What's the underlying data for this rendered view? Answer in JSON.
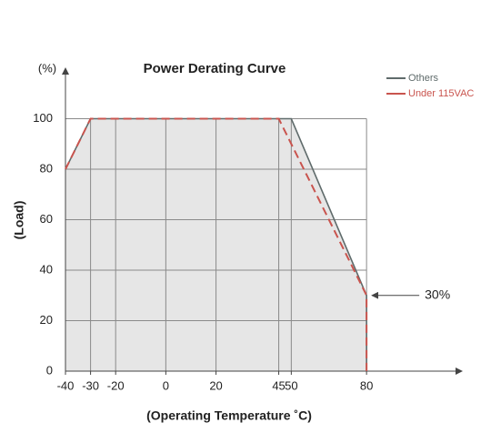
{
  "chart_data": {
    "type": "line",
    "title": "Power Derating Curve",
    "y_unit": "(%)",
    "ylabel": "(Load)",
    "xlabel": "(Operating Temperature ˚C)",
    "series": [
      {
        "name": "Others",
        "color": "#5f6b6b",
        "style": "solid",
        "fill": "#e6e6e6",
        "x": [
          -40,
          -30,
          50,
          80,
          80
        ],
        "values": [
          80,
          100,
          100,
          30,
          0
        ]
      },
      {
        "name": "Under 115VAC",
        "color": "#c9544e",
        "style": "dashed",
        "x": [
          -40,
          -30,
          45,
          80,
          80
        ],
        "values": [
          80,
          100,
          100,
          30,
          0
        ]
      }
    ],
    "xlim": [
      -40,
      118
    ],
    "ylim": [
      0,
      120
    ],
    "xticks": [
      -40,
      -30,
      -20,
      0,
      20,
      45,
      50,
      80
    ],
    "yticks": [
      0,
      20,
      40,
      60,
      80,
      100
    ],
    "grid": true,
    "legend": "top-right",
    "annotations": [
      {
        "text": "30%",
        "x": 80,
        "y": 30
      }
    ]
  }
}
